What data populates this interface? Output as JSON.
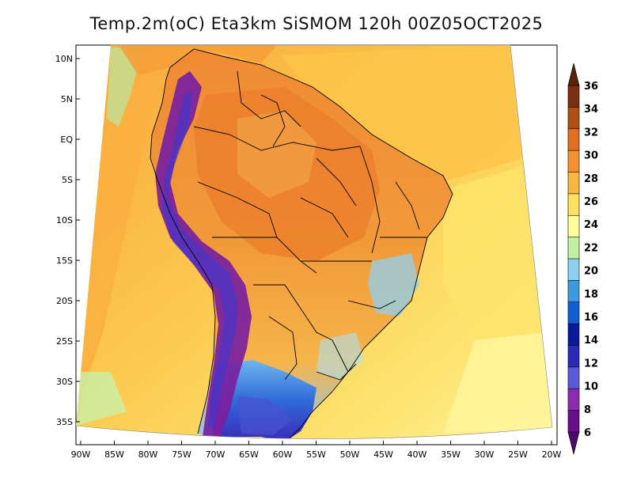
{
  "title": "Temp.2m(oC) Eta3km SiSMOM 120h 00Z05OCT2025",
  "lat_ticks": [
    "10N",
    "5N",
    "EQ",
    "5S",
    "10S",
    "15S",
    "20S",
    "25S",
    "30S",
    "35S"
  ],
  "lon_ticks": [
    "90W",
    "85W",
    "80W",
    "75W",
    "70W",
    "65W",
    "60W",
    "55W",
    "50W",
    "45W",
    "40W",
    "35W",
    "30W",
    "25W",
    "20W"
  ],
  "colorbar": {
    "labels": [
      "6",
      "8",
      "10",
      "12",
      "14",
      "16",
      "18",
      "20",
      "22",
      "24",
      "26",
      "28",
      "30",
      "32",
      "34",
      "36"
    ],
    "colors": [
      "#6a0d8a",
      "#8a2bb0",
      "#5a5ad8",
      "#2a2ab8",
      "#0a1a9a",
      "#1060d0",
      "#3c9ae0",
      "#8ccff0",
      "#c0f0a0",
      "#ffff9a",
      "#ffe060",
      "#f8b840",
      "#f49030",
      "#e07020",
      "#b05010",
      "#783010"
    ]
  },
  "colors": {
    "ocean_warm": "#fbc24a",
    "ocean_mid": "#fde068",
    "ocean_cool": "#fff59a",
    "land_hot": "#f29a3c",
    "andes": "#7a1fa0",
    "south_cold": "#2244c8",
    "borders": "#000000"
  }
}
